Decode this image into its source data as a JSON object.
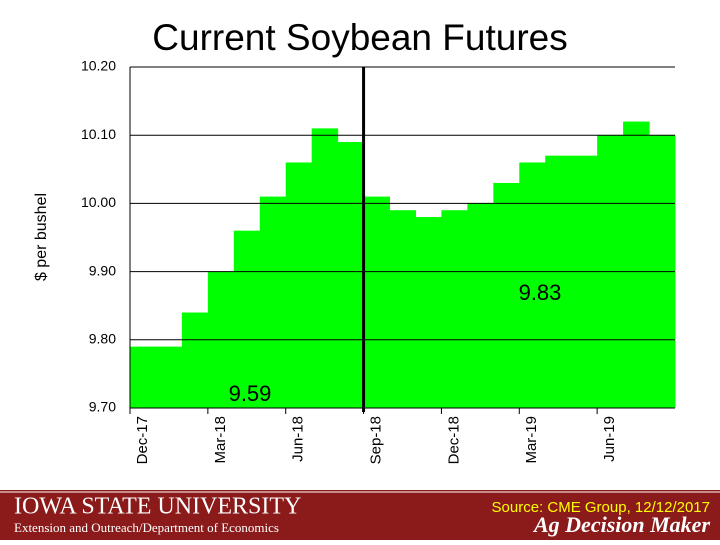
{
  "chart_data": {
    "type": "bar",
    "title": "Current Soybean Futures",
    "ylabel": "$ per bushel",
    "categories": [
      "Dec-17",
      null,
      null,
      "Mar-18",
      null,
      null,
      "Jun-18",
      null,
      null,
      "Sep-18",
      null,
      null,
      "Dec-18",
      null,
      null,
      "Mar-19",
      null,
      null,
      "Jun-19",
      null,
      null
    ],
    "values": [
      9.79,
      9.79,
      9.84,
      9.9,
      9.96,
      10.01,
      10.06,
      10.11,
      10.09,
      10.01,
      9.99,
      9.98,
      9.99,
      10.0,
      10.03,
      10.06,
      10.07,
      10.07,
      10.1,
      10.12,
      10.1
    ],
    "color": "#00ff00",
    "ylim": [
      9.7,
      10.2
    ],
    "yticks": [
      {
        "value": 9.7,
        "label": "9.70"
      },
      {
        "value": 9.8,
        "label": "9.80"
      },
      {
        "value": 9.9,
        "label": "9.90"
      },
      {
        "value": 10.0,
        "label": "10.00"
      },
      {
        "value": 10.1,
        "label": "10.10"
      },
      {
        "value": 10.2,
        "label": "10.20"
      }
    ],
    "grid": true,
    "annotations": [
      "9.83",
      "9.59"
    ]
  },
  "footer": {
    "university": "Iowa State University",
    "department": "Extension and Outreach/Department of Economics",
    "source": "Source: CME Group, 12/12/2017",
    "brand": "Ag Decision Maker"
  }
}
